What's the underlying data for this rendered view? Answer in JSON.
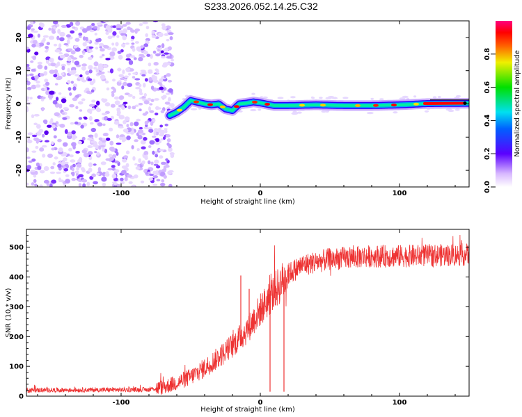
{
  "title": "S233.2026.052.14.25.C32",
  "chart_data": [
    {
      "type": "heatmap",
      "xlabel": "Height of straight line (km)",
      "ylabel": "Frequency (Hz)",
      "xlim": [
        -168,
        150
      ],
      "ylim": [
        -25,
        25
      ],
      "xticks": [
        -100,
        0,
        100
      ],
      "xtick_labels": [
        "-100",
        "0",
        "100"
      ],
      "yticks": [
        20,
        10,
        0,
        -10,
        -20
      ],
      "ytick_labels": [
        "20",
        "10",
        "0",
        "-10",
        "-20"
      ],
      "colorbar": {
        "label": "Normalized spectral amplitude",
        "range": [
          0,
          1
        ],
        "ticks": [
          0.0,
          0.2,
          0.4,
          0.6,
          0.8
        ],
        "tick_labels": [
          "0.0",
          "0.2",
          "0.4",
          "0.6",
          "0.8"
        ]
      },
      "noise_region_x": [
        -168,
        -65
      ],
      "signal_track": {
        "x": [
          -65,
          -60,
          -55,
          -50,
          -45,
          -40,
          -35,
          -30,
          -25,
          -20,
          -15,
          -10,
          -5,
          0,
          10,
          20,
          40,
          60,
          80,
          100,
          120,
          150
        ],
        "freq": [
          -3.5,
          -2.5,
          -1.0,
          1.0,
          0.5,
          0.0,
          -0.3,
          0.0,
          -1.5,
          -2.0,
          0.0,
          0.2,
          0.6,
          0.3,
          -0.5,
          -0.5,
          -0.3,
          -0.5,
          -0.5,
          -0.3,
          0.1,
          0.2
        ]
      }
    },
    {
      "type": "line",
      "xlabel": "Height of straight line (km)",
      "ylabel": "SNR (10 * v/v)",
      "xlim": [
        -168,
        150
      ],
      "ylim": [
        0,
        560
      ],
      "xticks": [
        -100,
        0,
        100
      ],
      "xtick_labels": [
        "-100",
        "0",
        "100"
      ],
      "yticks": [
        0,
        100,
        200,
        300,
        400,
        500
      ],
      "ytick_labels": [
        "0",
        "100",
        "200",
        "300",
        "400",
        "500"
      ],
      "color": "#ee3333",
      "trend": {
        "x": [
          -168,
          -80,
          -70,
          -60,
          -50,
          -40,
          -30,
          -20,
          -10,
          0,
          10,
          20,
          30,
          50,
          80,
          100,
          150
        ],
        "y": [
          20,
          22,
          30,
          45,
          65,
          95,
          130,
          170,
          220,
          290,
          350,
          410,
          440,
          460,
          470,
          470,
          475
        ]
      },
      "spikes": [
        {
          "x": -14,
          "y": 405
        },
        {
          "x": -8,
          "y": 360
        },
        {
          "x": 7,
          "y": 15
        },
        {
          "x": 17,
          "y": 15
        }
      ]
    }
  ]
}
